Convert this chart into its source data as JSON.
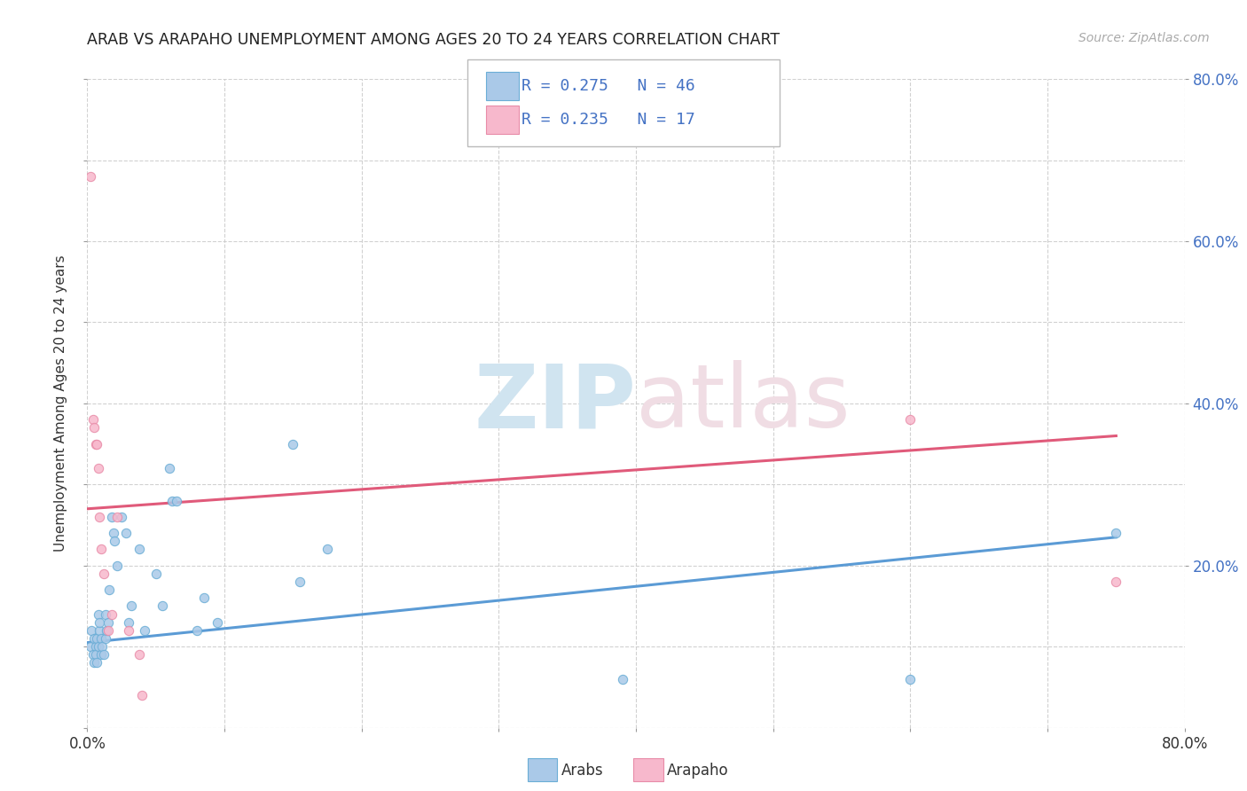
{
  "title": "ARAB VS ARAPAHO UNEMPLOYMENT AMONG AGES 20 TO 24 YEARS CORRELATION CHART",
  "source": "Source: ZipAtlas.com",
  "ylabel": "Unemployment Among Ages 20 to 24 years",
  "xlim": [
    0.0,
    0.8
  ],
  "ylim": [
    0.0,
    0.8
  ],
  "xticks": [
    0.0,
    0.1,
    0.2,
    0.3,
    0.4,
    0.5,
    0.6,
    0.7,
    0.8
  ],
  "yticks": [
    0.0,
    0.1,
    0.2,
    0.3,
    0.4,
    0.5,
    0.6,
    0.7,
    0.8
  ],
  "xticklabels_show": [
    "0.0%",
    "",
    "",
    "",
    "",
    "",
    "",
    "",
    "80.0%"
  ],
  "right_yticks": [
    0.2,
    0.4,
    0.6,
    0.8
  ],
  "right_yticklabels": [
    "20.0%",
    "40.0%",
    "60.0%",
    "80.0%"
  ],
  "arab_R": 0.275,
  "arab_N": 46,
  "arapaho_R": 0.235,
  "arapaho_N": 17,
  "arab_color": "#aac9e8",
  "arapaho_color": "#f7b8cc",
  "arab_edge_color": "#6baed6",
  "arapaho_edge_color": "#e88ca8",
  "arab_line_color": "#5b9bd5",
  "arapaho_line_color": "#e05a7a",
  "watermark_zip_color": "#d0e4f0",
  "watermark_atlas_color": "#f0dde4",
  "arab_x": [
    0.002,
    0.003,
    0.004,
    0.005,
    0.005,
    0.006,
    0.006,
    0.007,
    0.007,
    0.008,
    0.008,
    0.009,
    0.009,
    0.01,
    0.01,
    0.011,
    0.012,
    0.013,
    0.013,
    0.014,
    0.015,
    0.016,
    0.018,
    0.019,
    0.02,
    0.022,
    0.025,
    0.028,
    0.03,
    0.032,
    0.038,
    0.042,
    0.05,
    0.055,
    0.06,
    0.062,
    0.065,
    0.08,
    0.085,
    0.095,
    0.15,
    0.155,
    0.175,
    0.39,
    0.6,
    0.75
  ],
  "arab_y": [
    0.1,
    0.12,
    0.09,
    0.11,
    0.08,
    0.1,
    0.09,
    0.11,
    0.08,
    0.1,
    0.14,
    0.12,
    0.13,
    0.09,
    0.11,
    0.1,
    0.09,
    0.11,
    0.14,
    0.12,
    0.13,
    0.17,
    0.26,
    0.24,
    0.23,
    0.2,
    0.26,
    0.24,
    0.13,
    0.15,
    0.22,
    0.12,
    0.19,
    0.15,
    0.32,
    0.28,
    0.28,
    0.12,
    0.16,
    0.13,
    0.35,
    0.18,
    0.22,
    0.06,
    0.06,
    0.24
  ],
  "arapaho_x": [
    0.002,
    0.004,
    0.005,
    0.006,
    0.007,
    0.008,
    0.009,
    0.01,
    0.012,
    0.015,
    0.018,
    0.022,
    0.03,
    0.038,
    0.04,
    0.6,
    0.75
  ],
  "arapaho_y": [
    0.68,
    0.38,
    0.37,
    0.35,
    0.35,
    0.32,
    0.26,
    0.22,
    0.19,
    0.12,
    0.14,
    0.26,
    0.12,
    0.09,
    0.04,
    0.38,
    0.18
  ],
  "arab_trend_x": [
    0.0,
    0.75
  ],
  "arab_trend_y": [
    0.105,
    0.235
  ],
  "arapaho_trend_x": [
    0.0,
    0.75
  ],
  "arapaho_trend_y": [
    0.27,
    0.36
  ],
  "background_color": "#ffffff",
  "grid_color": "#cccccc",
  "legend_color": "#4472c4"
}
